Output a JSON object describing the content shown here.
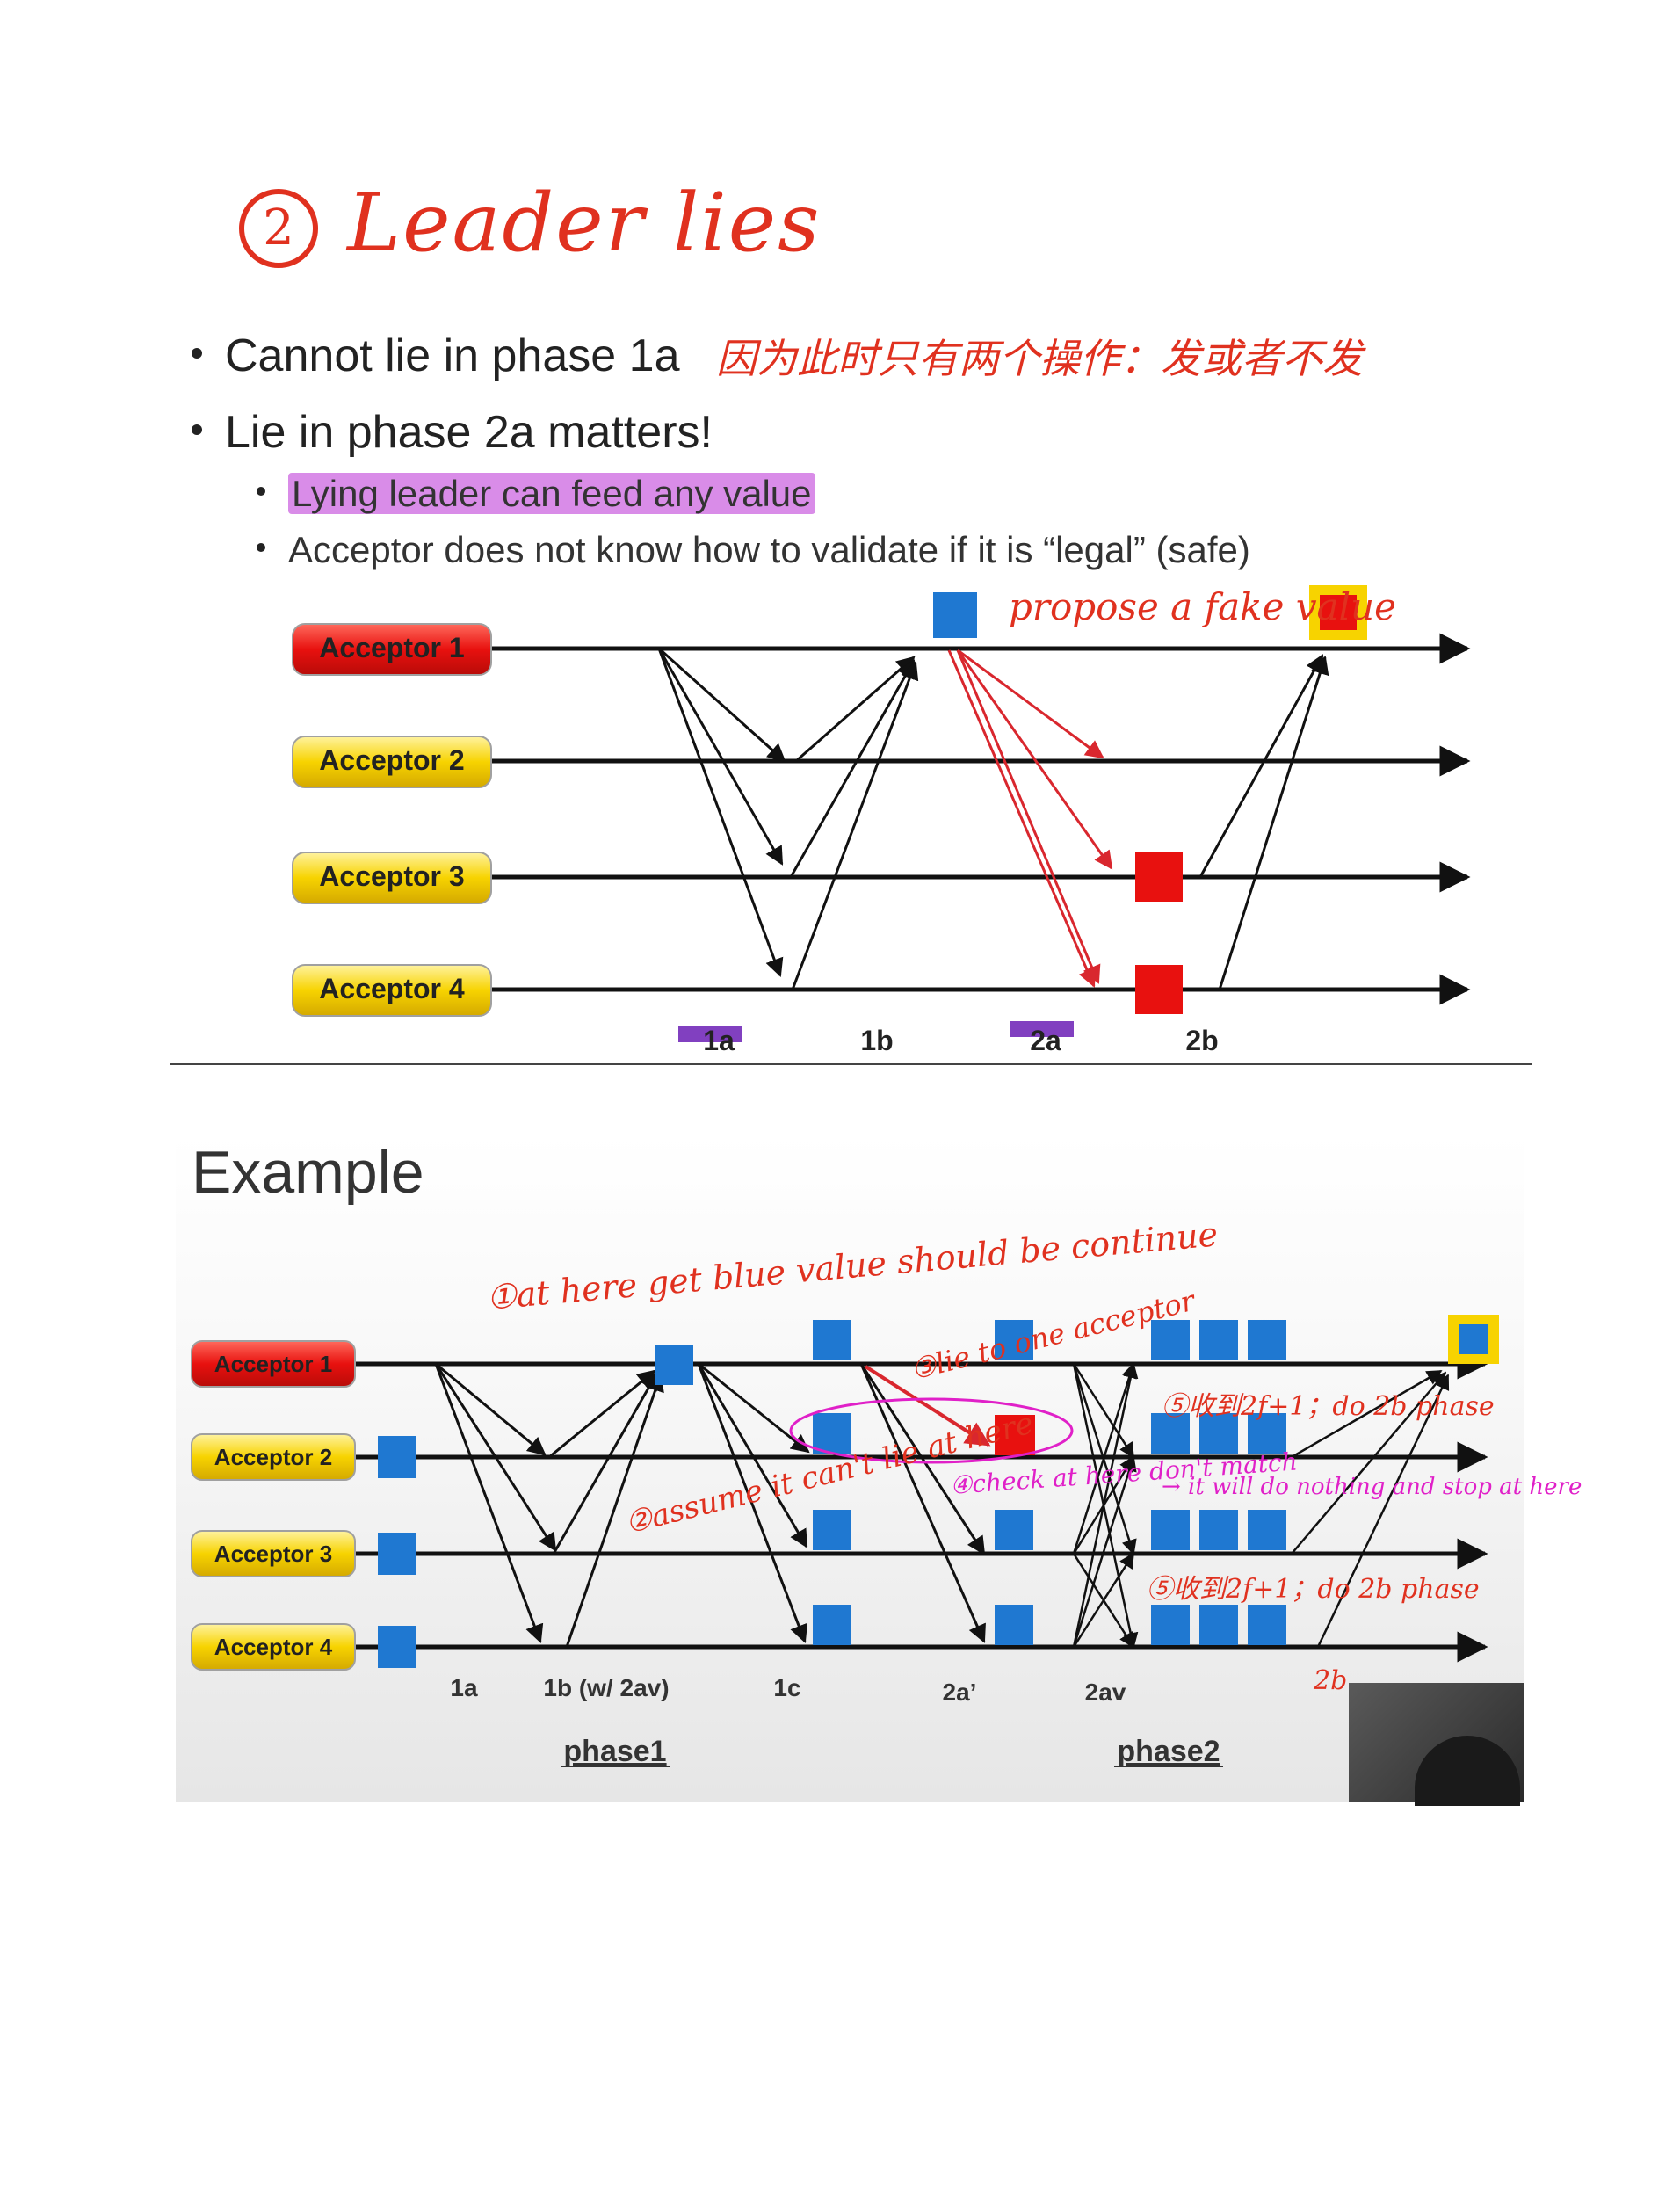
{
  "title": {
    "number": "2",
    "text": "Leader lies"
  },
  "slide1": {
    "bullets": [
      {
        "text": "Cannot lie in phase 1a",
        "note": "因为此时只有两个操作：发或者不发"
      },
      {
        "text": "Lie in phase 2a matters!"
      }
    ],
    "sub_bullets": [
      {
        "text": "Lying leader can feed any value"
      },
      {
        "text": "Acceptor does not know how to validate if it is “legal” (safe)"
      }
    ],
    "acceptors": [
      "Acceptor 1",
      "Acceptor 2",
      "Acceptor 3",
      "Acceptor 4"
    ],
    "phase_labels": [
      "1a",
      "1b",
      "2a",
      "2b"
    ],
    "note": "propose a fake value",
    "colors": {
      "leader": "#e8110f",
      "acceptor": "#f7d300",
      "box_blue": "#1f78d1",
      "box_red": "#e8110f",
      "line_red": "#d9272e",
      "mark_purple": "#6b1fb5"
    }
  },
  "slide2": {
    "title": "Example",
    "acceptors": [
      "Acceptor 1",
      "Acceptor 2",
      "Acceptor 3",
      "Acceptor 4"
    ],
    "phase_labels": [
      "1a",
      "1b (w/ 2av)",
      "1c",
      "2a’",
      "2av"
    ],
    "section_labels": [
      "phase1",
      "phase2"
    ],
    "notes_red": [
      "①at here get blue value should be continue",
      "②assume it can't lie at here",
      "③lie to one acceptor",
      "⑤收到2f+1；do 2b phase",
      "⑤收到2f+1；do 2b phase",
      "2b"
    ],
    "notes_pink": [
      "④check at here don't match",
      "→ it will do nothing and stop at here"
    ]
  }
}
